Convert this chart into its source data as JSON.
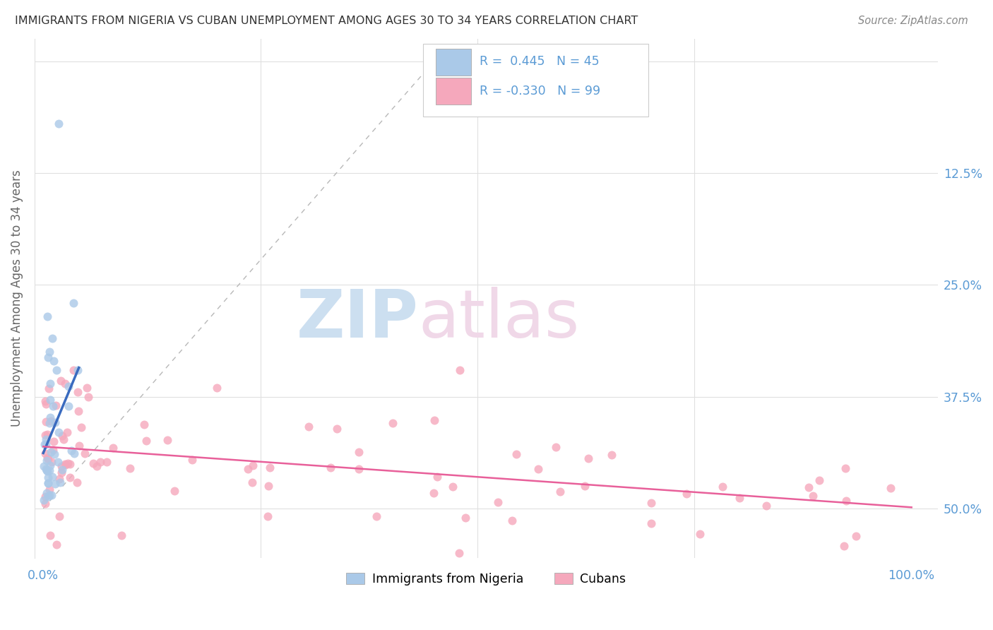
{
  "title": "IMMIGRANTS FROM NIGERIA VS CUBAN UNEMPLOYMENT AMONG AGES 30 TO 34 YEARS CORRELATION CHART",
  "source": "Source: ZipAtlas.com",
  "ylabel": "Unemployment Among Ages 30 to 34 years",
  "nigeria_R": 0.445,
  "nigeria_N": 45,
  "cuba_R": -0.33,
  "cuba_N": 99,
  "nigeria_color": "#aac9e8",
  "cuba_color": "#f5a8bc",
  "nigeria_line_color": "#3a6bbf",
  "cuba_line_color": "#e8609a",
  "background_color": "#ffffff",
  "grid_color": "#e0e0e0",
  "title_color": "#333333",
  "axis_label_color": "#5b9bd5",
  "ylabel_color": "#666666",
  "legend_label1": "Immigrants from Nigeria",
  "legend_label2": "Cubans",
  "watermark_zip_color": "#ccdff0",
  "watermark_atlas_color": "#f0d8e8"
}
